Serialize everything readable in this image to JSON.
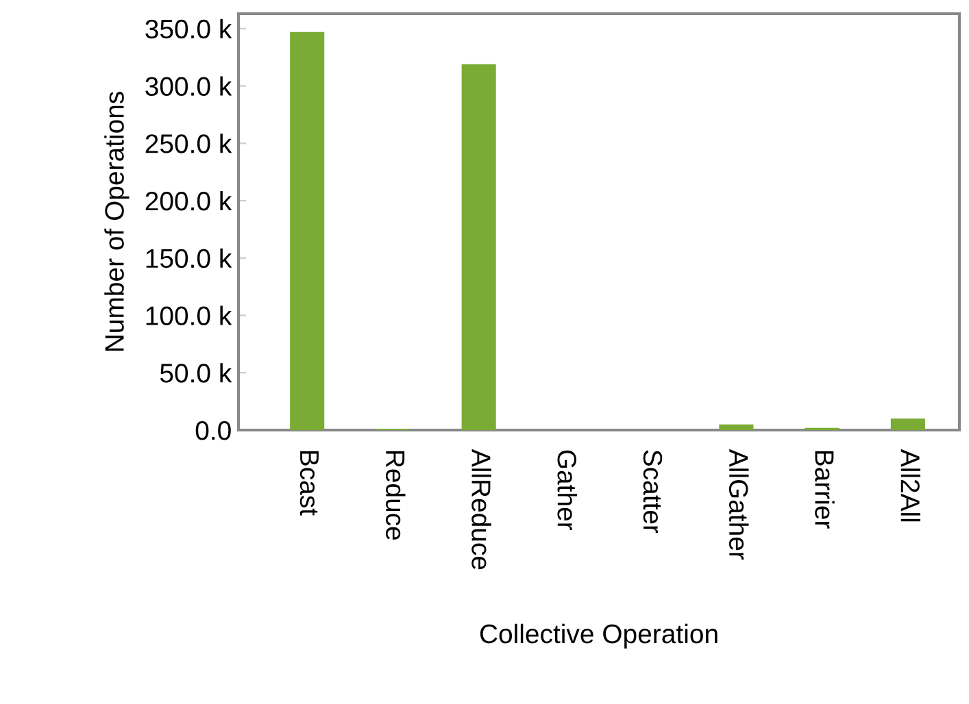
{
  "chart_data": {
    "type": "bar",
    "xlabel": "Collective Operation",
    "ylabel": "Number of Operations",
    "categories": [
      "Bcast",
      "Reduce",
      "AllReduce",
      "Gather",
      "Scatter",
      "AllGather",
      "Barrier",
      "All2All"
    ],
    "values": [
      347000,
      1000,
      319000,
      0,
      0,
      5000,
      2000,
      10000
    ],
    "color": "#7aab34",
    "ylim": [
      0,
      363000
    ],
    "yticks": [
      {
        "value": 0,
        "label": "0.0"
      },
      {
        "value": 50000,
        "label": "50.0 k"
      },
      {
        "value": 100000,
        "label": "100.0 k"
      },
      {
        "value": 150000,
        "label": "150.0 k"
      },
      {
        "value": 200000,
        "label": "200.0 k"
      },
      {
        "value": 250000,
        "label": "250.0 k"
      },
      {
        "value": 300000,
        "label": "300.0 k"
      },
      {
        "value": 350000,
        "label": "350.0 k"
      }
    ],
    "grid": false
  }
}
